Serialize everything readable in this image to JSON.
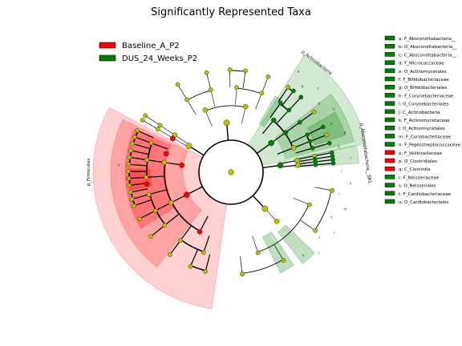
{
  "chart_data": {
    "type": "cladogram",
    "title": "Significantly Represented Taxa",
    "groups": [
      {
        "name": "Baseline_A_P2",
        "color": "#ff0000"
      },
      {
        "name": "DUS_24_Weeks_P2",
        "color": "#008000"
      }
    ],
    "biomarkers": [
      {
        "key": "a",
        "name": "F_Absconditabacteria__",
        "group": "DUS_24_Weeks_P2"
      },
      {
        "key": "b",
        "name": "O_Absconditabacteria__",
        "group": "DUS_24_Weeks_P2"
      },
      {
        "key": "c",
        "name": "C_Absconditabacteria__",
        "group": "DUS_24_Weeks_P2"
      },
      {
        "key": "d",
        "name": "F_Micrococcaceae",
        "group": "DUS_24_Weeks_P2"
      },
      {
        "key": "e",
        "name": "O_Actinomycetales",
        "group": "DUS_24_Weeks_P2"
      },
      {
        "key": "f",
        "name": "F_Bifidobacteriaceae",
        "group": "DUS_24_Weeks_P2"
      },
      {
        "key": "g",
        "name": "O_Bifidobacteriales",
        "group": "DUS_24_Weeks_P2"
      },
      {
        "key": "h",
        "name": "F_Corynebacteriaceae",
        "group": "DUS_24_Weeks_P2"
      },
      {
        "key": "i",
        "name": "O_Corynebacteriales",
        "group": "DUS_24_Weeks_P2"
      },
      {
        "key": "j",
        "name": "C_Actinobacteria",
        "group": "DUS_24_Weeks_P2"
      },
      {
        "key": "k",
        "name": "F_Actinomycetaceae",
        "group": "DUS_24_Weeks_P2"
      },
      {
        "key": "l",
        "name": "O_Actinomycetales",
        "group": "DUS_24_Weeks_P2"
      },
      {
        "key": "m",
        "name": "F_Coriobacteriaceae",
        "group": "DUS_24_Weeks_P2"
      },
      {
        "key": "n",
        "name": "F_Peptostreptococcaceae",
        "group": "DUS_24_Weeks_P2"
      },
      {
        "key": "o",
        "name": "F_Veillonellaceae",
        "group": "Baseline_A_P2"
      },
      {
        "key": "p",
        "name": "O_Clostridiales",
        "group": "Baseline_A_P2"
      },
      {
        "key": "q",
        "name": "C_Clostridia",
        "group": "Baseline_A_P2"
      },
      {
        "key": "r",
        "name": "F_Neisseriaceae",
        "group": "DUS_24_Weeks_P2"
      },
      {
        "key": "s",
        "name": "O_Neisseriales",
        "group": "DUS_24_Weeks_P2"
      },
      {
        "key": "t",
        "name": "F_Cardiobacteriaceae",
        "group": "DUS_24_Weeks_P2"
      },
      {
        "key": "u",
        "name": "O_Cardiobacteriales",
        "group": "DUS_24_Weeks_P2"
      }
    ],
    "phylum_labels": [
      "p_Actinobacteria",
      "p_Absconditabacteria__SR1",
      "p_Firmicutes"
    ],
    "clade_letters_red": [
      "o",
      "p",
      "q"
    ],
    "clade_letters_green": [
      "a",
      "b",
      "c",
      "d",
      "e",
      "f",
      "g",
      "h",
      "i",
      "j",
      "k",
      "l",
      "m",
      "n",
      "r",
      "s",
      "t",
      "u"
    ]
  },
  "colors": {
    "baseline": "#ff0000",
    "dus": "#008000",
    "node_default": "#bfbf00",
    "legend_swatch_green": "#008000",
    "legend_swatch_red": "#ff0000"
  }
}
